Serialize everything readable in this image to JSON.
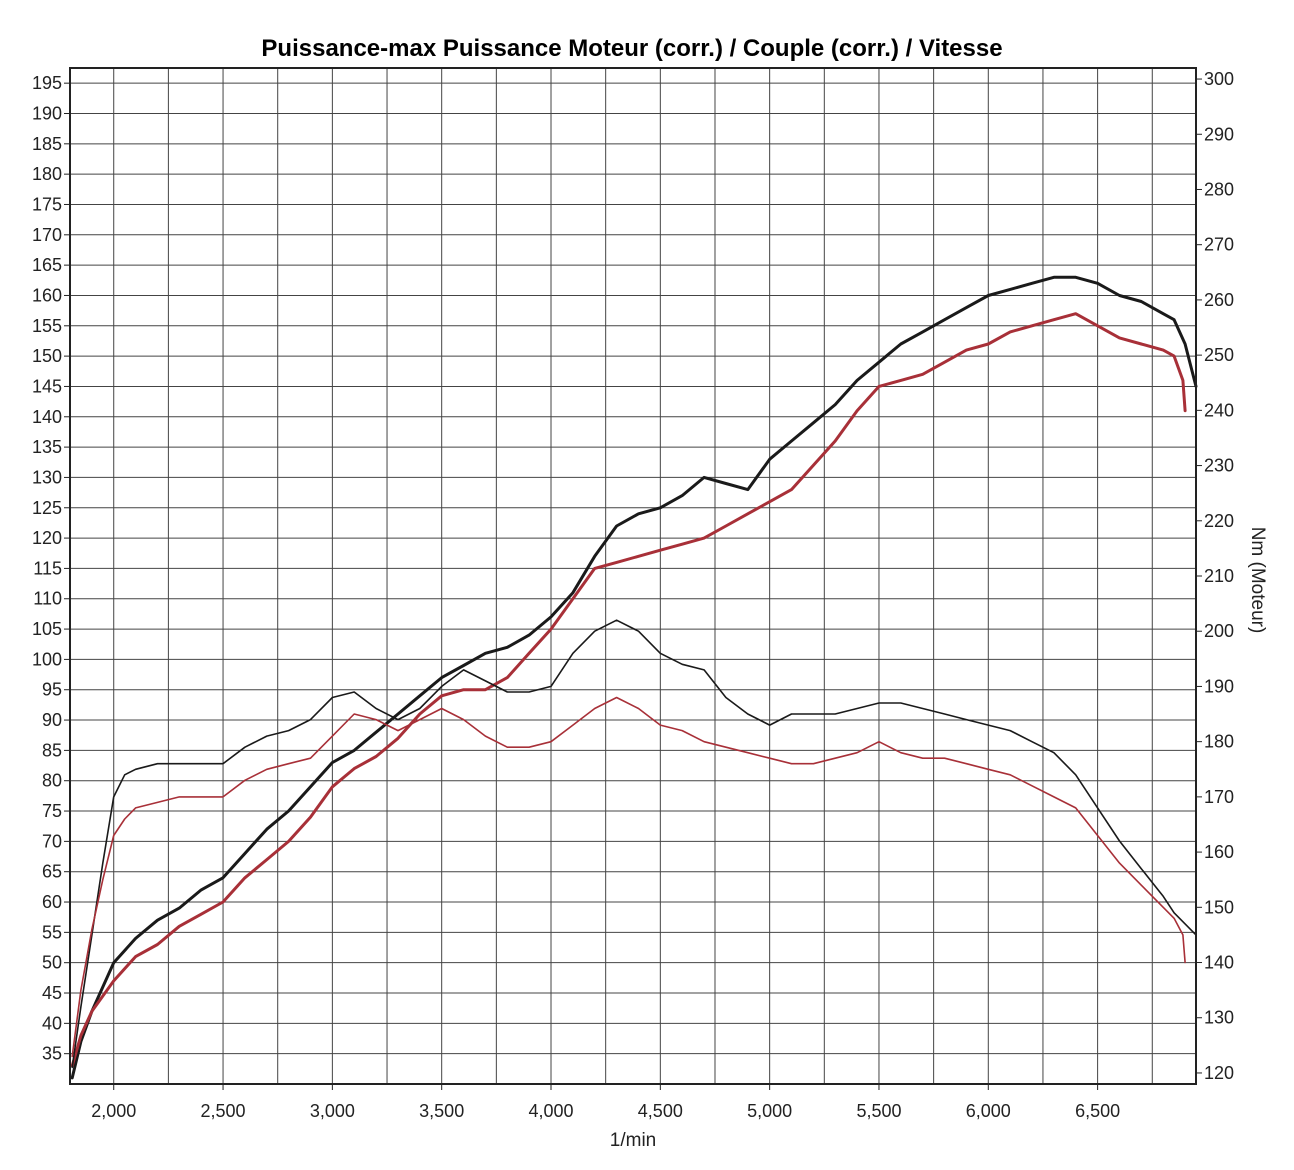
{
  "chart_data": {
    "type": "line",
    "title": "Puissance-max Puissance Moteur (corr.) / Couple (corr.) / Vitesse",
    "xlabel": "1/min",
    "ylabel_left": "",
    "ylabel_right": "Nm (Moteur)",
    "xlim": [
      1800,
      6950
    ],
    "ylim_left": [
      30,
      197.5
    ],
    "ylim_right": [
      118,
      302
    ],
    "x_ticks": [
      2000,
      2500,
      3000,
      3500,
      4000,
      4500,
      5000,
      5500,
      6000,
      6500
    ],
    "x_tick_labels": [
      "2,000",
      "2,500",
      "3,000",
      "3,500",
      "4,000",
      "4,500",
      "5,000",
      "5,500",
      "6,000",
      "6,500"
    ],
    "y_left_ticks": [
      35,
      40,
      45,
      50,
      55,
      60,
      65,
      70,
      75,
      80,
      85,
      90,
      95,
      100,
      105,
      110,
      115,
      120,
      125,
      130,
      135,
      140,
      145,
      150,
      155,
      160,
      165,
      170,
      175,
      180,
      185,
      190,
      195
    ],
    "y_right_ticks": [
      120,
      130,
      140,
      150,
      160,
      170,
      180,
      190,
      200,
      210,
      220,
      230,
      240,
      250,
      260,
      270,
      280,
      290,
      300
    ],
    "grid": true,
    "series": [
      {
        "axis": "left",
        "color": "#1a1a1a",
        "weight": "thick",
        "x": [
          1810,
          1850,
          1900,
          2000,
          2100,
          2200,
          2300,
          2400,
          2500,
          2600,
          2700,
          2800,
          2900,
          3000,
          3100,
          3200,
          3300,
          3400,
          3500,
          3600,
          3700,
          3800,
          3900,
          4000,
          4100,
          4200,
          4300,
          4400,
          4500,
          4600,
          4700,
          4800,
          4900,
          5000,
          5100,
          5200,
          5300,
          5400,
          5500,
          5600,
          5700,
          5800,
          5900,
          6000,
          6100,
          6200,
          6300,
          6400,
          6500,
          6600,
          6700,
          6800,
          6850,
          6900,
          6950
        ],
        "y": [
          31,
          37,
          42,
          50,
          54,
          57,
          59,
          62,
          64,
          68,
          72,
          75,
          79,
          83,
          85,
          88,
          91,
          94,
          97,
          99,
          101,
          102,
          104,
          107,
          111,
          117,
          122,
          124,
          125,
          127,
          130,
          129,
          128,
          133,
          136,
          139,
          142,
          146,
          149,
          152,
          154,
          156,
          158,
          160,
          161,
          162,
          163,
          163,
          162,
          160,
          159,
          157,
          156,
          152,
          145
        ]
      },
      {
        "axis": "left",
        "color": "#a83038",
        "weight": "thick",
        "x": [
          1810,
          1850,
          1900,
          2000,
          2100,
          2200,
          2300,
          2400,
          2500,
          2600,
          2700,
          2800,
          2900,
          3000,
          3100,
          3200,
          3300,
          3400,
          3500,
          3600,
          3700,
          3800,
          3900,
          4000,
          4100,
          4200,
          4300,
          4400,
          4500,
          4600,
          4700,
          4800,
          4900,
          5000,
          5100,
          5200,
          5300,
          5400,
          5500,
          5600,
          5700,
          5800,
          5900,
          6000,
          6100,
          6200,
          6300,
          6400,
          6500,
          6600,
          6700,
          6800,
          6850,
          6890,
          6900
        ],
        "y": [
          33,
          38,
          42,
          47,
          51,
          53,
          56,
          58,
          60,
          64,
          67,
          70,
          74,
          79,
          82,
          84,
          87,
          91,
          94,
          95,
          95,
          97,
          101,
          105,
          110,
          115,
          116,
          117,
          118,
          119,
          120,
          122,
          124,
          126,
          128,
          132,
          136,
          141,
          145,
          146,
          147,
          149,
          151,
          152,
          154,
          155,
          156,
          157,
          155,
          153,
          152,
          151,
          150,
          146,
          141
        ]
      },
      {
        "axis": "right",
        "color": "#1a1a1a",
        "weight": "thin",
        "x": [
          1810,
          1850,
          1900,
          1950,
          2000,
          2050,
          2100,
          2200,
          2300,
          2400,
          2500,
          2600,
          2700,
          2800,
          2900,
          3000,
          3100,
          3200,
          3300,
          3400,
          3500,
          3600,
          3700,
          3800,
          3900,
          4000,
          4100,
          4200,
          4300,
          4400,
          4500,
          4600,
          4700,
          4800,
          4900,
          5000,
          5100,
          5200,
          5300,
          5400,
          5500,
          5600,
          5700,
          5800,
          5900,
          6000,
          6100,
          6200,
          6300,
          6400,
          6500,
          6600,
          6700,
          6800,
          6850,
          6900,
          6950
        ],
        "y": [
          121,
          132,
          145,
          158,
          170,
          174,
          175,
          176,
          176,
          176,
          176,
          179,
          181,
          182,
          184,
          188,
          189,
          186,
          184,
          186,
          190,
          193,
          191,
          189,
          189,
          190,
          196,
          200,
          202,
          200,
          196,
          194,
          193,
          188,
          185,
          183,
          185,
          185,
          185,
          186,
          187,
          187,
          186,
          185,
          184,
          183,
          182,
          180,
          178,
          174,
          168,
          162,
          157,
          152,
          149,
          147,
          145
        ]
      },
      {
        "axis": "right",
        "color": "#a83038",
        "weight": "thin",
        "x": [
          1810,
          1850,
          1900,
          1950,
          2000,
          2050,
          2100,
          2200,
          2300,
          2400,
          2500,
          2600,
          2700,
          2800,
          2900,
          3000,
          3100,
          3200,
          3300,
          3400,
          3500,
          3600,
          3700,
          3800,
          3900,
          4000,
          4100,
          4200,
          4300,
          4400,
          4500,
          4600,
          4700,
          4800,
          4900,
          5000,
          5100,
          5200,
          5300,
          5400,
          5500,
          5600,
          5700,
          5800,
          5900,
          6000,
          6100,
          6200,
          6300,
          6400,
          6500,
          6600,
          6700,
          6800,
          6850,
          6890,
          6900
        ],
        "y": [
          123,
          135,
          146,
          155,
          163,
          166,
          168,
          169,
          170,
          170,
          170,
          173,
          175,
          176,
          177,
          181,
          185,
          184,
          182,
          184,
          186,
          184,
          181,
          179,
          179,
          180,
          183,
          186,
          188,
          186,
          183,
          182,
          180,
          179,
          178,
          177,
          176,
          176,
          177,
          178,
          180,
          178,
          177,
          177,
          176,
          175,
          174,
          172,
          170,
          168,
          163,
          158,
          154,
          150,
          148,
          145,
          140
        ]
      }
    ]
  }
}
